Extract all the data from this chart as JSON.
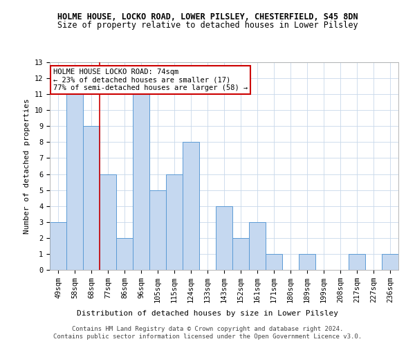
{
  "title1": "HOLME HOUSE, LOCKO ROAD, LOWER PILSLEY, CHESTERFIELD, S45 8DN",
  "title2": "Size of property relative to detached houses in Lower Pilsley",
  "xlabel": "Distribution of detached houses by size in Lower Pilsley",
  "ylabel": "Number of detached properties",
  "categories": [
    "49sqm",
    "58sqm",
    "68sqm",
    "77sqm",
    "86sqm",
    "96sqm",
    "105sqm",
    "115sqm",
    "124sqm",
    "133sqm",
    "143sqm",
    "152sqm",
    "161sqm",
    "171sqm",
    "180sqm",
    "189sqm",
    "199sqm",
    "208sqm",
    "217sqm",
    "227sqm",
    "236sqm"
  ],
  "values": [
    3,
    11,
    9,
    6,
    2,
    11,
    5,
    6,
    8,
    0,
    4,
    2,
    3,
    1,
    0,
    1,
    0,
    0,
    1,
    0,
    1
  ],
  "bar_color": "#c5d8f0",
  "bar_edge_color": "#5b9bd5",
  "annotation_text": "HOLME HOUSE LOCKO ROAD: 74sqm\n← 23% of detached houses are smaller (17)\n77% of semi-detached houses are larger (58) →",
  "annotation_box_color": "#ffffff",
  "annotation_box_edge_color": "#cc0000",
  "vline_color": "#cc0000",
  "vline_x_index": 2.5,
  "ylim": [
    0,
    13
  ],
  "yticks": [
    0,
    1,
    2,
    3,
    4,
    5,
    6,
    7,
    8,
    9,
    10,
    11,
    12,
    13
  ],
  "footer1": "Contains HM Land Registry data © Crown copyright and database right 2024.",
  "footer2": "Contains public sector information licensed under the Open Government Licence v3.0.",
  "background_color": "#ffffff",
  "grid_color": "#c8d8ea",
  "title1_fontsize": 8.5,
  "title2_fontsize": 8.5,
  "axis_label_fontsize": 8.0,
  "tick_fontsize": 7.5,
  "annotation_fontsize": 7.5,
  "footer_fontsize": 6.5
}
